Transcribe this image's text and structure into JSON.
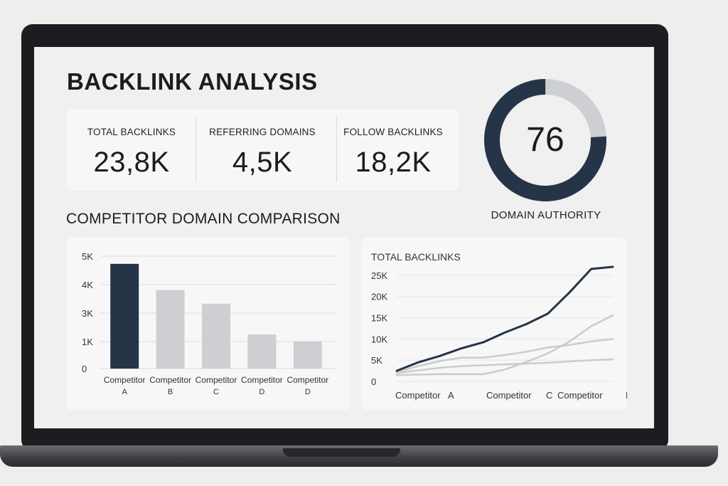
{
  "dashboard": {
    "title": "BACKLINK ANALYSIS",
    "kpis": [
      {
        "label": "TOTAL BACKLINKS",
        "value": "23,8K"
      },
      {
        "label": "REFERRING DOMAINS",
        "value": "4,5K"
      },
      {
        "label": "FOLLOW BACKLINKS",
        "value": "18,2K"
      }
    ],
    "domain_authority": {
      "value": "76",
      "score": 76,
      "max": 100,
      "label": "DOMAIN AUTHORITY"
    },
    "comparison_title": "COMPETITOR DOMAIN COMPARISON"
  },
  "colors": {
    "accent": "#263447",
    "muted": "#cdcfd2",
    "line_light": "#c9cccf"
  },
  "chart_data": [
    {
      "type": "bar",
      "title": "",
      "categories": [
        [
          "Competitor",
          "A"
        ],
        [
          "Competitor",
          "B"
        ],
        [
          "Competitor",
          "C"
        ],
        [
          "Competitor",
          "D"
        ],
        [
          "Competitor",
          "D"
        ]
      ],
      "values": [
        4600,
        3450,
        2850,
        1500,
        1200
      ],
      "highlight_index": 0,
      "y_ticks": [
        "0",
        "1K",
        "3K",
        "4K",
        "5K"
      ],
      "ylim": [
        0,
        5000
      ],
      "grid": true
    },
    {
      "type": "line",
      "title": "TOTAL BACKLINKS",
      "x_ticks": [
        "Competitor",
        "A",
        "Competitor",
        "C",
        "Competitor",
        "D",
        "D"
      ],
      "y_ticks": [
        "0",
        "5K",
        "10K",
        "15K",
        "20K",
        "25K"
      ],
      "ylim": [
        0,
        27500
      ],
      "x": [
        0,
        1,
        2,
        3,
        4,
        5,
        6,
        7,
        8,
        9,
        10
      ],
      "series": [
        {
          "values": [
            2500,
            4500,
            6000,
            7800,
            9200,
            11500,
            13500,
            16000,
            21000,
            26500,
            27000
          ],
          "emphasis": true
        },
        {
          "values": [
            2200,
            3600,
            4800,
            5600,
            5600,
            6200,
            7000,
            8000,
            8600,
            9400,
            10000
          ],
          "emphasis": false
        },
        {
          "values": [
            2000,
            2600,
            3200,
            3600,
            3800,
            4000,
            4200,
            4400,
            4700,
            5000,
            5200
          ],
          "emphasis": false
        },
        {
          "values": [
            1500,
            1600,
            1700,
            1700,
            1700,
            2800,
            4600,
            6600,
            9400,
            13000,
            15600
          ],
          "emphasis": false
        }
      ],
      "grid": true
    }
  ]
}
